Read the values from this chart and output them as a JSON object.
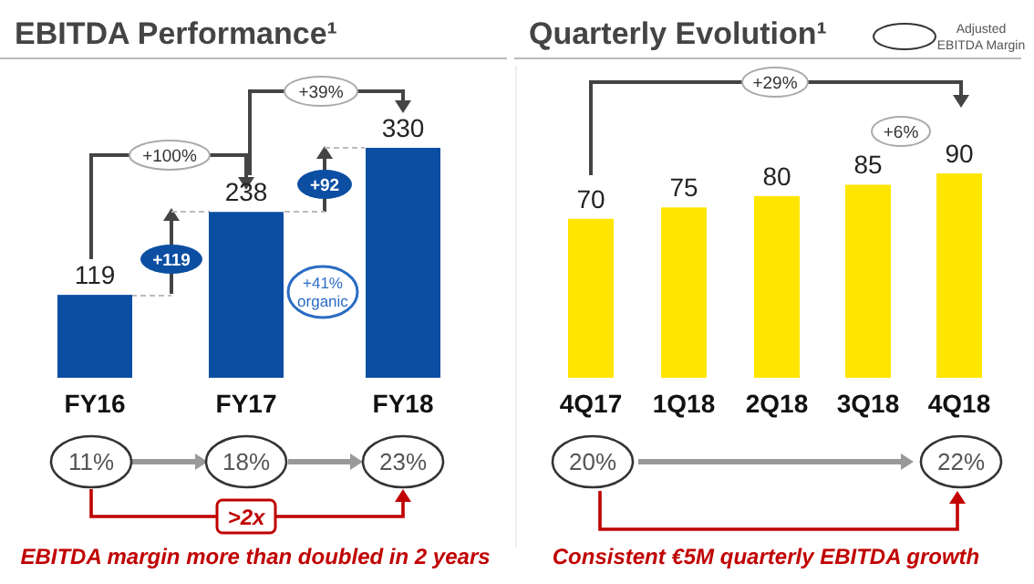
{
  "chart_data": [
    {
      "type": "bar",
      "title": "EBITDA Performance¹",
      "categories": [
        "FY16",
        "FY17",
        "FY18"
      ],
      "values": [
        119,
        238,
        330
      ],
      "color": "#0b4ea2",
      "data_labels": true,
      "annotations": [
        "+100%",
        "+39%",
        "+119",
        "+92",
        "+41% organic",
        "11%",
        "18%",
        "23%",
        ">2x",
        "EBITDA margin more than doubled in 2 years"
      ]
    },
    {
      "type": "bar",
      "title": "Quarterly Evolution¹",
      "categories": [
        "4Q17",
        "1Q18",
        "2Q18",
        "3Q18",
        "4Q18"
      ],
      "values": [
        70,
        75,
        80,
        85,
        90
      ],
      "color": "#ffe600",
      "data_labels": true,
      "annotations": [
        "Adjusted EBITDA Margin",
        "+29%",
        "+6%",
        "20%",
        "22%",
        "Consistent €5M quarterly EBITDA growth"
      ]
    }
  ]
}
